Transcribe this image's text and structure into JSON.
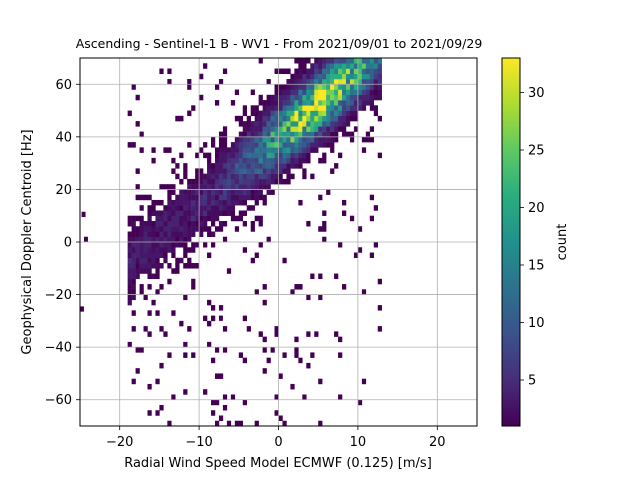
{
  "chart_data": {
    "type": "heatmap",
    "subtype": "2d-histogram",
    "title": "Ascending - Sentinel-1 B - WV1 - From 2021/09/01 to 2021/09/29",
    "xlabel": "Radial Wind Speed Model ECMWF (0.125) [m/s]",
    "ylabel": "Geophysical Doppler Centroid [Hz]",
    "xlim": [
      -25,
      25
    ],
    "ylim": [
      -70,
      70
    ],
    "xticks": [
      -20,
      -10,
      0,
      10,
      20
    ],
    "yticks": [
      -60,
      -40,
      -20,
      0,
      20,
      40,
      60
    ],
    "grid": true,
    "colormap": "viridis",
    "colorbar": {
      "label": "count",
      "min": 1,
      "max": 33,
      "ticks": [
        5,
        10,
        15,
        20,
        25,
        30
      ]
    },
    "bin_size": {
      "x": 0.5,
      "y": 2
    },
    "distribution": {
      "slope_hz_per_ms": 2.5,
      "intercept_hz": 40,
      "spread_hz": 7,
      "x_range_of_data": [
        -19,
        13
      ],
      "peak_location": {
        "x": 5,
        "y": 65
      },
      "peak_count": 33
    },
    "outliers": [
      {
        "x": -24.8,
        "y": 10.5
      },
      {
        "x": -24.5,
        "y": 1
      },
      {
        "x": -25,
        "y": -25.5
      },
      {
        "x": -7.5,
        "y": -29
      }
    ]
  }
}
